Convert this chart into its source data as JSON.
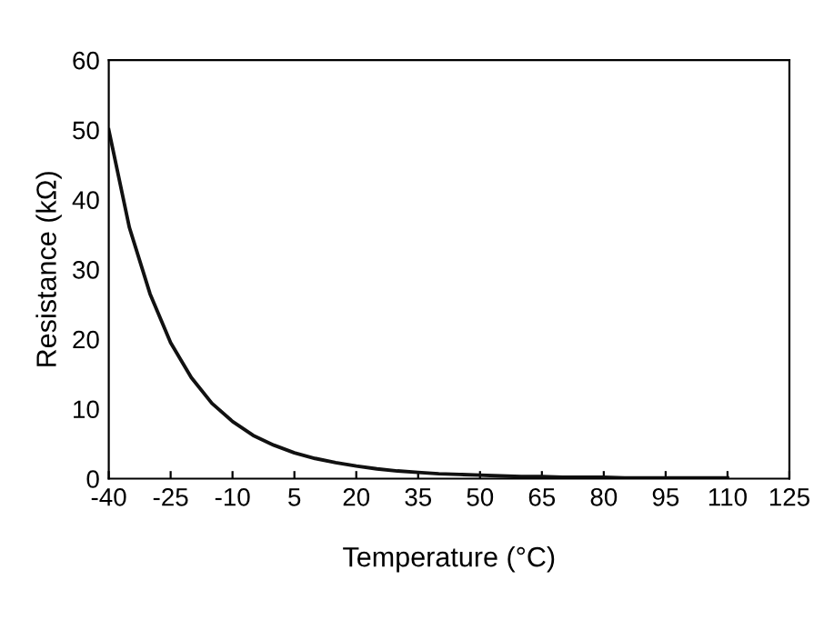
{
  "chart_data": {
    "type": "line",
    "xlabel": "Temperature (°C)",
    "ylabel": "Resistance (kΩ)",
    "xlim": [
      -40,
      125
    ],
    "xticks": [
      -40,
      -25,
      -10,
      5,
      20,
      35,
      50,
      65,
      80,
      95,
      110,
      125
    ],
    "ylim": [
      0,
      60
    ],
    "yticks": [
      0,
      10,
      20,
      30,
      40,
      50,
      60
    ],
    "grid": false,
    "marker": "none",
    "line_style": "solid",
    "series": [
      {
        "color": "#111111",
        "x": [
          -40,
          -35,
          -30,
          -25,
          -20,
          -15,
          -10,
          -5,
          0,
          5,
          10,
          15,
          20,
          25,
          30,
          35,
          40,
          45,
          50,
          55,
          60,
          65,
          70,
          75,
          80,
          85,
          90,
          95,
          100,
          105,
          110
        ],
        "values": [
          50,
          36,
          26.5,
          19.5,
          14.5,
          10.8,
          8.2,
          6.2,
          4.8,
          3.7,
          2.9,
          2.3,
          1.8,
          1.4,
          1.1,
          0.9,
          0.7,
          0.6,
          0.5,
          0.4,
          0.3,
          0.3,
          0.2,
          0.2,
          0.2,
          0.1,
          0.1,
          0.1,
          0.1,
          0.1,
          0.1
        ]
      }
    ]
  }
}
